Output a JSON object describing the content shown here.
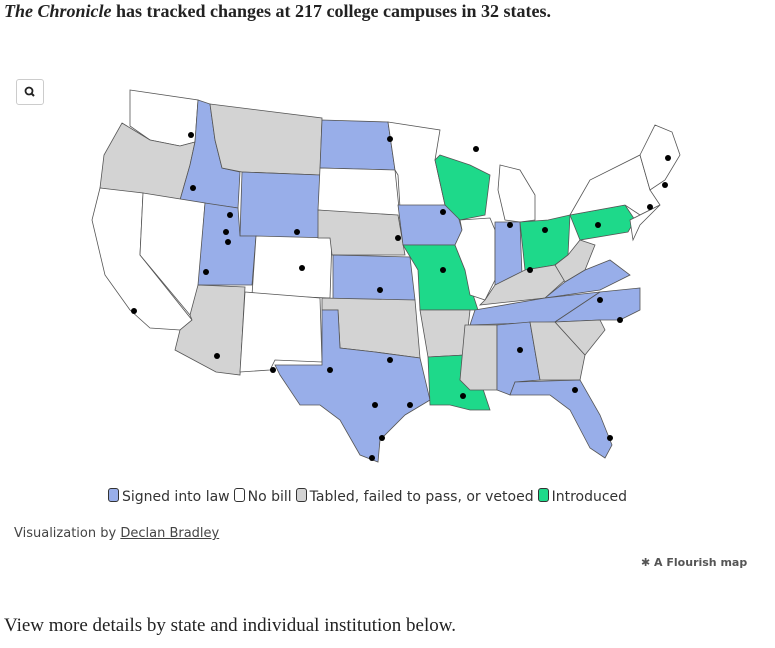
{
  "header": {
    "title_italic": "The Chronicle",
    "title_rest": "has tracked changes at 217 college campuses in 32 states."
  },
  "legend": [
    {
      "label": "Signed into law",
      "color": "#98aee9"
    },
    {
      "label": "No bill",
      "color": "#ffffff"
    },
    {
      "label": "Tabled, failed to pass, or vetoed",
      "color": "#d3d3d3"
    },
    {
      "label": "Introduced",
      "color": "#1ed98a"
    }
  ],
  "credit": {
    "prefix": "Visualization by",
    "author": "Declan Bradley"
  },
  "flourish": "A Flourish map",
  "footer": "View more details by state and individual institution below."
}
